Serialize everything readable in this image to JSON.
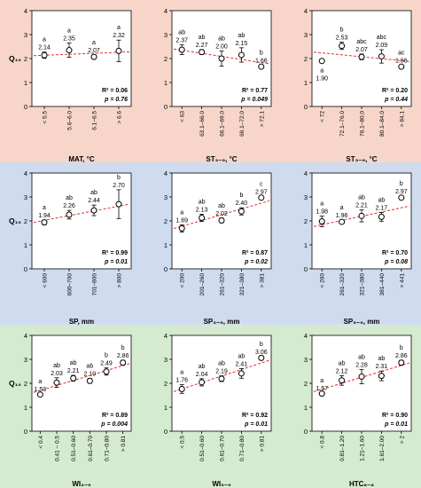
{
  "y_axis_label": "Q₁₀",
  "row_colors": [
    "#f7d6c9",
    "#cfdcf0",
    "#d5ebcf"
  ],
  "trend_color": "#e0302a",
  "chart_data": [
    {
      "type": "scatter",
      "xlabel": "MAT, °C",
      "ylabel": "Q₁₀",
      "ylim": [
        0,
        4
      ],
      "yticks": [
        0,
        1,
        2,
        3,
        4
      ],
      "categories": [
        "< 5.5",
        "5.6–6.0",
        "6.1–6.5",
        "> 6.6"
      ],
      "values": [
        2.14,
        2.35,
        2.07,
        2.32
      ],
      "errors": [
        0.13,
        0.3,
        0.08,
        0.45
      ],
      "labels": [
        "2.14",
        "2.35",
        "2.07",
        "2.32"
      ],
      "letters": [
        "a",
        "a",
        "a",
        "a"
      ],
      "trend": [
        2.12,
        2.28
      ],
      "r2": "R² = 0.06",
      "p": "p = 0.76",
      "filled": [
        false,
        false,
        false,
        false
      ]
    },
    {
      "type": "scatter",
      "xlabel": "ST₃₋₉, °C",
      "ylabel": "",
      "ylim": [
        0,
        4
      ],
      "yticks": [
        0,
        1,
        2,
        3,
        4
      ],
      "categories": [
        "< 63",
        "63.1–66.0",
        "66.1–69.0",
        "69.1–72.0",
        "> 72.1"
      ],
      "values": [
        2.37,
        2.27,
        2.0,
        2.15,
        1.66
      ],
      "errors": [
        0.2,
        0.1,
        0.32,
        0.3,
        0.07
      ],
      "labels": [
        "2.37",
        "2.27",
        "2.00",
        "2.15",
        "1.66"
      ],
      "letters": [
        "ab",
        "ab",
        "ab",
        "ab",
        "b"
      ],
      "trend": [
        2.4,
        1.78
      ],
      "r2": "R² = 0.77",
      "p": "p = 0.049",
      "filled": [
        false,
        false,
        false,
        false,
        false
      ]
    },
    {
      "type": "scatter",
      "xlabel": "ST₃₋₉, °C",
      "ylabel": "",
      "ylim": [
        0,
        4
      ],
      "yticks": [
        0,
        1,
        2,
        3,
        4
      ],
      "categories": [
        "< 72",
        "72.1–76.0",
        "76.1–80.0",
        "80.1–84.0",
        "> 84.1"
      ],
      "values": [
        1.9,
        2.53,
        2.07,
        2.09,
        1.66
      ],
      "errors": [
        0.05,
        0.15,
        0.12,
        0.28,
        0.07
      ],
      "labels": [
        "1.90",
        "2.53",
        "2.07",
        "2.09",
        "1.66"
      ],
      "letters": [
        "a",
        "b",
        "abc",
        "abc",
        "ac"
      ],
      "trend": [
        2.27,
        1.88
      ],
      "r2": "R² = 0.20",
      "p": "p = 0.44",
      "filled": [
        false,
        false,
        false,
        false,
        false
      ]
    },
    {
      "type": "scatter",
      "xlabel": "SP, mm",
      "ylabel": "Q₁₀",
      "ylim": [
        0,
        4
      ],
      "yticks": [
        0,
        1,
        2,
        3,
        4
      ],
      "categories": [
        "< 600",
        "600–700",
        "701–800",
        "> 800"
      ],
      "values": [
        1.94,
        2.26,
        2.44,
        2.7
      ],
      "errors": [
        0.1,
        0.18,
        0.22,
        0.6
      ],
      "labels": [
        "1.94",
        "2.26",
        "2.44",
        "2.70"
      ],
      "letters": [
        "a",
        "ab",
        "ab",
        "b"
      ],
      "trend": [
        1.94,
        2.7
      ],
      "r2": "R² = 0.99",
      "p": "p = 0.01",
      "filled": [
        false,
        false,
        false,
        false
      ]
    },
    {
      "type": "scatter",
      "xlabel": "SP₃₋₉, mm",
      "ylabel": "",
      "ylim": [
        0,
        4
      ],
      "yticks": [
        0,
        1,
        2,
        3,
        4
      ],
      "categories": [
        "< 200",
        "201–260",
        "261–320",
        "321–380",
        "> 381"
      ],
      "values": [
        1.69,
        2.13,
        2.02,
        2.4,
        2.97
      ],
      "errors": [
        0.15,
        0.15,
        0.1,
        0.15,
        0.05
      ],
      "labels": [
        "1.69",
        "2.13",
        "2.02",
        "2.40",
        "2.97"
      ],
      "letters": [
        "a",
        "ab",
        "ab",
        "b",
        "c"
      ],
      "trend": [
        1.68,
        2.84
      ],
      "r2": "R² = 0.87",
      "p": "p = 0.02",
      "filled": [
        false,
        false,
        false,
        false,
        true
      ]
    },
    {
      "type": "scatter",
      "xlabel": "SP₅₋₉, mm",
      "ylabel": "",
      "ylim": [
        0,
        4
      ],
      "yticks": [
        0,
        1,
        2,
        3,
        4
      ],
      "categories": [
        "< 260",
        "261–320",
        "321–380",
        "381–440",
        "> 441"
      ],
      "values": [
        1.98,
        1.96,
        2.21,
        2.17,
        2.97
      ],
      "errors": [
        0.22,
        0.07,
        0.25,
        0.18,
        0.07
      ],
      "labels": [
        "1.98",
        "1.96",
        "2.21",
        "2.17",
        "2.97"
      ],
      "letters": [
        "a",
        "a",
        "ab",
        "ab",
        "b"
      ],
      "trend": [
        1.77,
        2.62
      ],
      "r2": "R² = 0.70",
      "p": "p = 0.08",
      "filled": [
        false,
        false,
        false,
        false,
        false
      ]
    },
    {
      "type": "scatter",
      "xlabel": "WI₃₋₉",
      "ylabel": "Q₁₀",
      "ylim": [
        0,
        4
      ],
      "yticks": [
        0,
        1,
        2,
        3,
        4
      ],
      "categories": [
        "< 0.4",
        "0.41 – 0.5",
        "0.51–0.60",
        "0.61–0.70",
        "0.71–0.80",
        "> 0.81"
      ],
      "values": [
        1.53,
        2.03,
        2.21,
        2.1,
        2.49,
        2.86
      ],
      "errors": [
        0.03,
        0.2,
        0.12,
        0.1,
        0.15,
        0.1
      ],
      "labels": [
        "1.53",
        "2.03",
        "2.21",
        "2.10",
        "2.49",
        "2.86"
      ],
      "letters": [
        "a",
        "ab",
        "ab",
        "ab",
        "b",
        "b"
      ],
      "trend": [
        1.62,
        2.82
      ],
      "r2": "R² = 0.89",
      "p": "p = 0.004",
      "filled": [
        false,
        false,
        false,
        false,
        false,
        false
      ]
    },
    {
      "type": "scatter",
      "xlabel": "WI₅₋₉",
      "ylabel": "",
      "ylim": [
        0,
        4
      ],
      "yticks": [
        0,
        1,
        2,
        3,
        4
      ],
      "categories": [
        "< 0.5",
        "0.51–0.60",
        "0.61–0.70",
        "0.71–0.80",
        "> 0.81"
      ],
      "values": [
        1.76,
        2.04,
        2.19,
        2.41,
        3.06
      ],
      "errors": [
        0.18,
        0.15,
        0.12,
        0.2,
        0.05
      ],
      "labels": [
        "1.76",
        "2.04",
        "2.19",
        "2.41",
        "3.06"
      ],
      "letters": [
        "a",
        "ab",
        "ab",
        "ab",
        "b"
      ],
      "trend": [
        1.65,
        2.96
      ],
      "r2": "R² = 0.92",
      "p": "p = 0.01",
      "filled": [
        false,
        false,
        false,
        false,
        true
      ]
    },
    {
      "type": "scatter",
      "xlabel": "HTC₆₋₈",
      "ylabel": "",
      "ylim": [
        0,
        4
      ],
      "yticks": [
        0,
        1,
        2,
        3,
        4
      ],
      "categories": [
        "< 0.8",
        "0.81–1.20",
        "1.21–1.60",
        "1.61–2.00",
        "> 2"
      ],
      "values": [
        1.57,
        2.12,
        2.28,
        2.31,
        2.86
      ],
      "errors": [
        0.03,
        0.2,
        0.3,
        0.2,
        0.1
      ],
      "labels": [
        "1.57",
        "2.12",
        "2.28",
        "2.31",
        "2.86"
      ],
      "letters": [
        "a",
        "ab",
        "ab",
        "ab",
        "b"
      ],
      "trend": [
        1.65,
        2.85
      ],
      "r2": "R² = 0.90",
      "p": "p = 0.01",
      "filled": [
        false,
        false,
        false,
        false,
        false
      ]
    }
  ]
}
